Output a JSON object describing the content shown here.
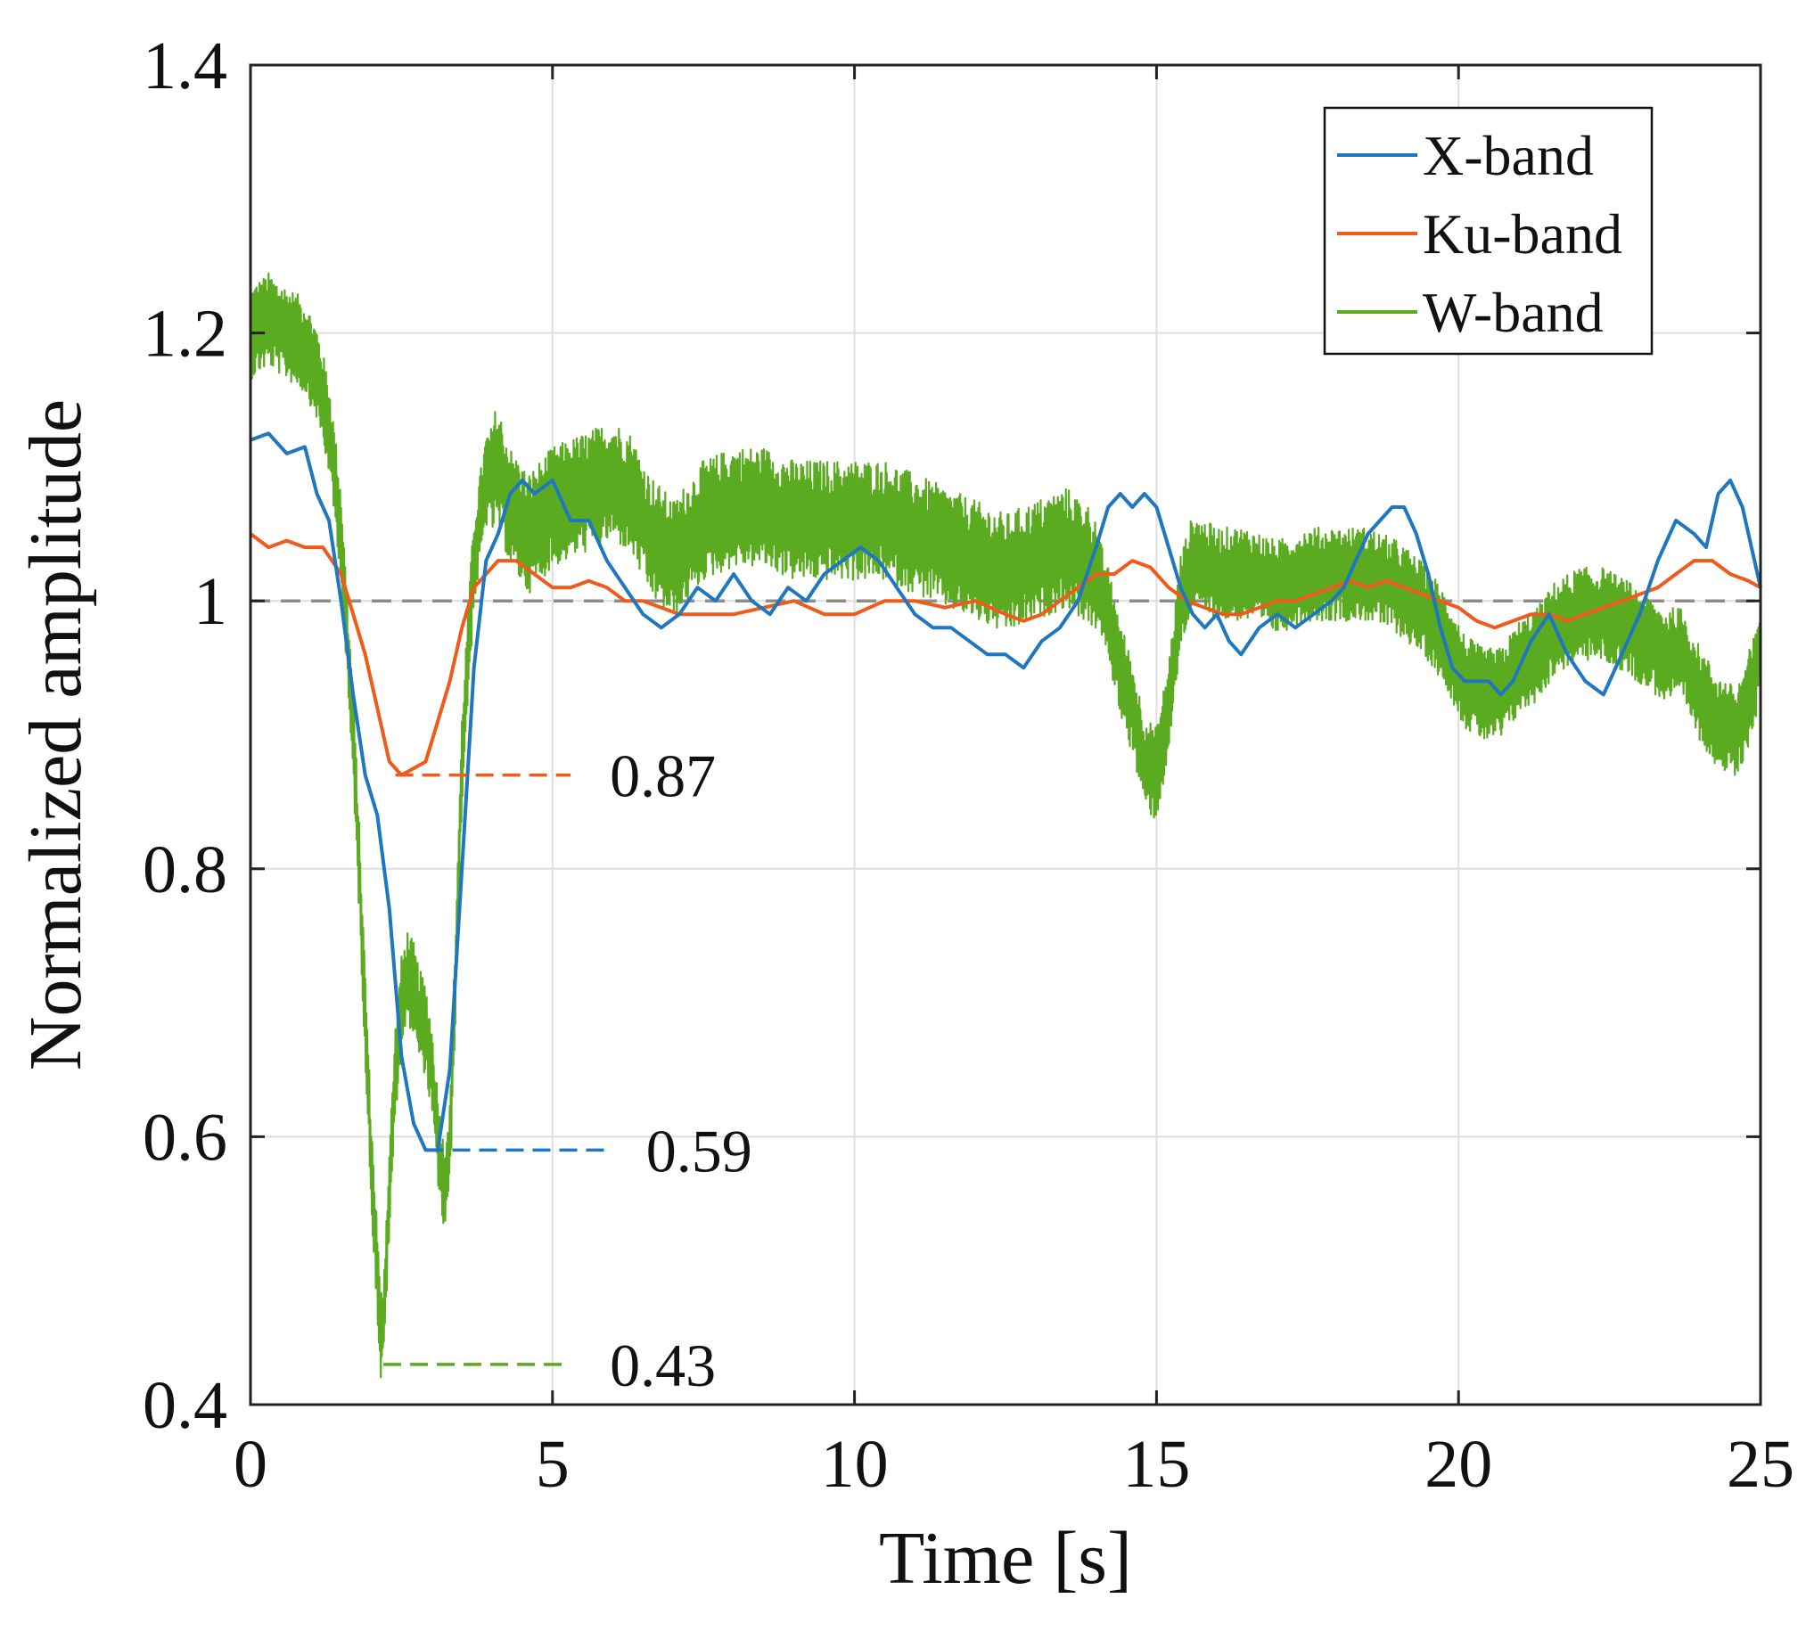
{
  "chart_data": {
    "type": "line",
    "title": "",
    "xlabel": "Time [s]",
    "ylabel": "Normalized amplitude",
    "xlim": [
      0,
      25
    ],
    "ylim": [
      0.4,
      1.4
    ],
    "xticks": [
      0,
      5,
      10,
      15,
      20,
      25
    ],
    "yticks": [
      0.4,
      0.6,
      0.8,
      1,
      1.2,
      1.4
    ],
    "xtick_labels": [
      "0",
      "5",
      "10",
      "15",
      "20",
      "25"
    ],
    "ytick_labels": [
      "0.4",
      "0.6",
      "0.8",
      "1",
      "1.2",
      "1.4"
    ],
    "grid": true,
    "legend_position": "top-right",
    "reference_line": {
      "y": 1.0,
      "color": "#8c8c8c",
      "style": "dashed"
    },
    "series": [
      {
        "name": "X-band",
        "label": "X-band",
        "color": "#1f77bf",
        "points": [
          [
            0,
            1.12
          ],
          [
            0.3,
            1.125
          ],
          [
            0.6,
            1.11
          ],
          [
            0.9,
            1.115
          ],
          [
            1.1,
            1.08
          ],
          [
            1.3,
            1.06
          ],
          [
            1.5,
            1.0
          ],
          [
            1.7,
            0.93
          ],
          [
            1.9,
            0.87
          ],
          [
            2.1,
            0.84
          ],
          [
            2.3,
            0.77
          ],
          [
            2.5,
            0.66
          ],
          [
            2.7,
            0.61
          ],
          [
            2.9,
            0.59
          ],
          [
            3.1,
            0.59
          ],
          [
            3.3,
            0.65
          ],
          [
            3.5,
            0.8
          ],
          [
            3.7,
            0.95
          ],
          [
            3.9,
            1.03
          ],
          [
            4.1,
            1.05
          ],
          [
            4.3,
            1.08
          ],
          [
            4.5,
            1.09
          ],
          [
            4.7,
            1.08
          ],
          [
            5.0,
            1.09
          ],
          [
            5.3,
            1.06
          ],
          [
            5.6,
            1.06
          ],
          [
            5.9,
            1.03
          ],
          [
            6.2,
            1.01
          ],
          [
            6.5,
            0.99
          ],
          [
            6.8,
            0.98
          ],
          [
            7.1,
            0.99
          ],
          [
            7.4,
            1.01
          ],
          [
            7.7,
            1.0
          ],
          [
            8.0,
            1.02
          ],
          [
            8.3,
            1.0
          ],
          [
            8.6,
            0.99
          ],
          [
            8.9,
            1.01
          ],
          [
            9.2,
            1.0
          ],
          [
            9.5,
            1.02
          ],
          [
            9.8,
            1.03
          ],
          [
            10.1,
            1.04
          ],
          [
            10.4,
            1.03
          ],
          [
            10.7,
            1.01
          ],
          [
            11.0,
            0.99
          ],
          [
            11.3,
            0.98
          ],
          [
            11.6,
            0.98
          ],
          [
            11.9,
            0.97
          ],
          [
            12.2,
            0.96
          ],
          [
            12.5,
            0.96
          ],
          [
            12.8,
            0.95
          ],
          [
            13.1,
            0.97
          ],
          [
            13.4,
            0.98
          ],
          [
            13.7,
            1.0
          ],
          [
            14.0,
            1.04
          ],
          [
            14.2,
            1.07
          ],
          [
            14.4,
            1.08
          ],
          [
            14.6,
            1.07
          ],
          [
            14.8,
            1.08
          ],
          [
            15.0,
            1.07
          ],
          [
            15.2,
            1.04
          ],
          [
            15.4,
            1.01
          ],
          [
            15.6,
            0.99
          ],
          [
            15.8,
            0.98
          ],
          [
            16.0,
            0.99
          ],
          [
            16.2,
            0.97
          ],
          [
            16.4,
            0.96
          ],
          [
            16.7,
            0.98
          ],
          [
            17.0,
            0.99
          ],
          [
            17.3,
            0.98
          ],
          [
            17.6,
            0.99
          ],
          [
            17.9,
            1.0
          ],
          [
            18.1,
            1.01
          ],
          [
            18.3,
            1.03
          ],
          [
            18.5,
            1.05
          ],
          [
            18.7,
            1.06
          ],
          [
            18.9,
            1.07
          ],
          [
            19.1,
            1.07
          ],
          [
            19.3,
            1.05
          ],
          [
            19.5,
            1.02
          ],
          [
            19.7,
            0.98
          ],
          [
            19.9,
            0.95
          ],
          [
            20.1,
            0.94
          ],
          [
            20.3,
            0.94
          ],
          [
            20.5,
            0.94
          ],
          [
            20.7,
            0.93
          ],
          [
            20.9,
            0.94
          ],
          [
            21.2,
            0.97
          ],
          [
            21.5,
            0.99
          ],
          [
            21.8,
            0.96
          ],
          [
            22.1,
            0.94
          ],
          [
            22.4,
            0.93
          ],
          [
            22.7,
            0.96
          ],
          [
            23.0,
            0.99
          ],
          [
            23.3,
            1.03
          ],
          [
            23.6,
            1.06
          ],
          [
            23.9,
            1.05
          ],
          [
            24.1,
            1.04
          ],
          [
            24.3,
            1.08
          ],
          [
            24.5,
            1.09
          ],
          [
            24.7,
            1.07
          ],
          [
            24.9,
            1.03
          ],
          [
            25.0,
            1.01
          ]
        ]
      },
      {
        "name": "Ku-band",
        "label": "Ku-band",
        "color": "#f05a1a",
        "points": [
          [
            0,
            1.05
          ],
          [
            0.3,
            1.04
          ],
          [
            0.6,
            1.045
          ],
          [
            0.9,
            1.04
          ],
          [
            1.2,
            1.04
          ],
          [
            1.5,
            1.02
          ],
          [
            1.7,
            0.99
          ],
          [
            1.9,
            0.96
          ],
          [
            2.1,
            0.92
          ],
          [
            2.3,
            0.88
          ],
          [
            2.5,
            0.87
          ],
          [
            2.7,
            0.875
          ],
          [
            2.9,
            0.88
          ],
          [
            3.1,
            0.91
          ],
          [
            3.3,
            0.94
          ],
          [
            3.5,
            0.98
          ],
          [
            3.7,
            1.01
          ],
          [
            3.9,
            1.02
          ],
          [
            4.1,
            1.03
          ],
          [
            4.4,
            1.03
          ],
          [
            4.7,
            1.02
          ],
          [
            5.0,
            1.01
          ],
          [
            5.3,
            1.01
          ],
          [
            5.6,
            1.015
          ],
          [
            5.9,
            1.01
          ],
          [
            6.2,
            1.0
          ],
          [
            6.5,
            1.0
          ],
          [
            6.8,
            0.995
          ],
          [
            7.1,
            0.99
          ],
          [
            7.4,
            0.99
          ],
          [
            7.7,
            0.99
          ],
          [
            8.0,
            0.99
          ],
          [
            8.5,
            0.995
          ],
          [
            9.0,
            1.0
          ],
          [
            9.5,
            0.99
          ],
          [
            10.0,
            0.99
          ],
          [
            10.5,
            1.0
          ],
          [
            11.0,
            1.0
          ],
          [
            11.5,
            0.995
          ],
          [
            12.0,
            1.0
          ],
          [
            12.5,
            0.99
          ],
          [
            12.8,
            0.985
          ],
          [
            13.1,
            0.99
          ],
          [
            13.4,
            1.0
          ],
          [
            13.7,
            1.01
          ],
          [
            14.0,
            1.02
          ],
          [
            14.3,
            1.02
          ],
          [
            14.6,
            1.03
          ],
          [
            14.9,
            1.025
          ],
          [
            15.2,
            1.01
          ],
          [
            15.5,
            1.0
          ],
          [
            15.8,
            0.995
          ],
          [
            16.1,
            0.99
          ],
          [
            16.4,
            0.99
          ],
          [
            16.7,
            0.995
          ],
          [
            17.0,
            1.0
          ],
          [
            17.3,
            1.0
          ],
          [
            17.6,
            1.005
          ],
          [
            17.9,
            1.01
          ],
          [
            18.2,
            1.015
          ],
          [
            18.5,
            1.01
          ],
          [
            18.8,
            1.015
          ],
          [
            19.1,
            1.01
          ],
          [
            19.4,
            1.005
          ],
          [
            19.7,
            1.0
          ],
          [
            20.0,
            0.995
          ],
          [
            20.3,
            0.985
          ],
          [
            20.6,
            0.98
          ],
          [
            20.9,
            0.985
          ],
          [
            21.2,
            0.99
          ],
          [
            21.5,
            0.99
          ],
          [
            21.8,
            0.985
          ],
          [
            22.1,
            0.99
          ],
          [
            22.4,
            0.995
          ],
          [
            22.7,
            1.0
          ],
          [
            23.0,
            1.005
          ],
          [
            23.3,
            1.01
          ],
          [
            23.6,
            1.02
          ],
          [
            23.9,
            1.03
          ],
          [
            24.2,
            1.03
          ],
          [
            24.5,
            1.02
          ],
          [
            24.8,
            1.015
          ],
          [
            25.0,
            1.01
          ]
        ]
      },
      {
        "name": "W-band",
        "label": "W-band",
        "color": "#5aab1f",
        "points": [
          [
            0,
            1.2
          ],
          [
            0.3,
            1.21
          ],
          [
            0.6,
            1.2
          ],
          [
            0.9,
            1.19
          ],
          [
            1.1,
            1.17
          ],
          [
            1.3,
            1.13
          ],
          [
            1.5,
            1.05
          ],
          [
            1.6,
            0.97
          ],
          [
            1.7,
            0.9
          ],
          [
            1.8,
            0.8
          ],
          [
            1.9,
            0.69
          ],
          [
            2.0,
            0.58
          ],
          [
            2.1,
            0.5
          ],
          [
            2.15,
            0.45
          ],
          [
            2.2,
            0.46
          ],
          [
            2.3,
            0.56
          ],
          [
            2.4,
            0.65
          ],
          [
            2.5,
            0.7
          ],
          [
            2.6,
            0.72
          ],
          [
            2.7,
            0.71
          ],
          [
            2.8,
            0.69
          ],
          [
            2.9,
            0.68
          ],
          [
            3.0,
            0.65
          ],
          [
            3.1,
            0.6
          ],
          [
            3.2,
            0.56
          ],
          [
            3.3,
            0.59
          ],
          [
            3.4,
            0.73
          ],
          [
            3.5,
            0.88
          ],
          [
            3.6,
            0.96
          ],
          [
            3.7,
            1.03
          ],
          [
            3.9,
            1.09
          ],
          [
            4.1,
            1.1
          ],
          [
            4.3,
            1.07
          ],
          [
            4.6,
            1.05
          ],
          [
            5.0,
            1.07
          ],
          [
            5.5,
            1.08
          ],
          [
            6.0,
            1.09
          ],
          [
            6.3,
            1.08
          ],
          [
            6.6,
            1.05
          ],
          [
            7.0,
            1.03
          ],
          [
            7.5,
            1.06
          ],
          [
            8.0,
            1.07
          ],
          [
            8.5,
            1.07
          ],
          [
            9.0,
            1.06
          ],
          [
            9.5,
            1.06
          ],
          [
            10.0,
            1.06
          ],
          [
            10.5,
            1.06
          ],
          [
            11.0,
            1.05
          ],
          [
            11.5,
            1.04
          ],
          [
            12.0,
            1.03
          ],
          [
            12.5,
            1.02
          ],
          [
            13.0,
            1.03
          ],
          [
            13.5,
            1.04
          ],
          [
            13.8,
            1.03
          ],
          [
            14.0,
            1.02
          ],
          [
            14.2,
            0.99
          ],
          [
            14.4,
            0.95
          ],
          [
            14.6,
            0.92
          ],
          [
            14.8,
            0.88
          ],
          [
            15.0,
            0.87
          ],
          [
            15.2,
            0.92
          ],
          [
            15.4,
            1.0
          ],
          [
            15.6,
            1.03
          ],
          [
            16.0,
            1.02
          ],
          [
            16.5,
            1.02
          ],
          [
            17.0,
            1.01
          ],
          [
            17.5,
            1.02
          ],
          [
            18.0,
            1.02
          ],
          [
            18.5,
            1.02
          ],
          [
            19.0,
            1.01
          ],
          [
            19.5,
            0.99
          ],
          [
            19.8,
            0.97
          ],
          [
            20.1,
            0.94
          ],
          [
            20.4,
            0.93
          ],
          [
            20.7,
            0.93
          ],
          [
            21.0,
            0.95
          ],
          [
            21.3,
            0.96
          ],
          [
            21.6,
            0.98
          ],
          [
            22.0,
            0.99
          ],
          [
            22.4,
            0.99
          ],
          [
            22.8,
            0.98
          ],
          [
            23.1,
            0.97
          ],
          [
            23.4,
            0.96
          ],
          [
            23.7,
            0.96
          ],
          [
            24.0,
            0.93
          ],
          [
            24.3,
            0.91
          ],
          [
            24.6,
            0.9
          ],
          [
            24.9,
            0.94
          ],
          [
            25.0,
            0.97
          ]
        ]
      }
    ],
    "annotations": [
      {
        "label": "0.87",
        "value": 0.87,
        "x_start": 2.4,
        "x_end": 5.3,
        "color": "#f05a1a"
      },
      {
        "label": "0.59",
        "value": 0.59,
        "x_start": 2.9,
        "x_end": 5.9,
        "color": "#1f77bf"
      },
      {
        "label": "0.43",
        "value": 0.43,
        "x_start": 2.2,
        "x_end": 5.3,
        "color": "#5aab1f"
      }
    ]
  }
}
